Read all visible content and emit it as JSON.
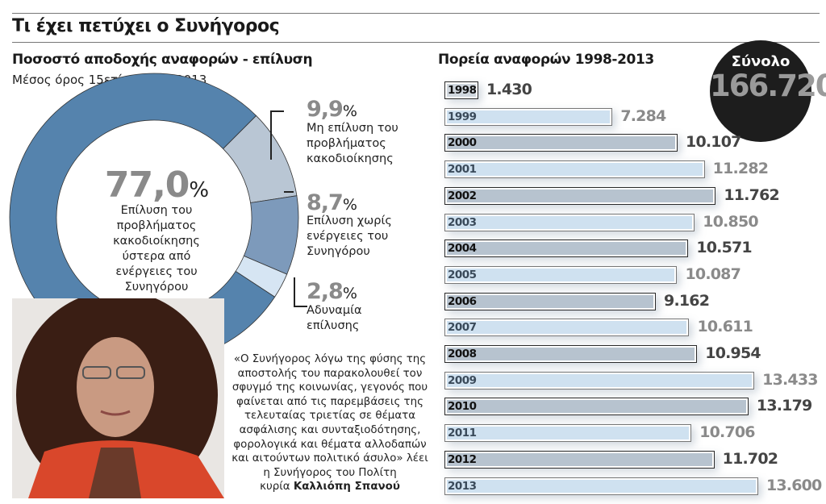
{
  "title": "Τι έχει πετύχει ο Συνήγορος",
  "donut_section": {
    "title": "Ποσοστό αποδοχής αναφορών - επίλυση",
    "subtitle": "Μέσος όρος 15ετίας 1998-2013"
  },
  "bars_section": {
    "title": "Πορεία αναφορών 1998-2013"
  },
  "total": {
    "label": "Σύνολο",
    "value": "166.720"
  },
  "quote": {
    "text": "«Ο Συνήγορος λόγω της φύσης της αποστολής του παρακολουθεί τον σφυγμό της κοινωνίας, γεγονός που φαίνεται από τις παρεμβάσεις της τελευταίας τριετίας σε θέματα ασφάλισης και συνταξιοδότησης, φορολογικά και θέματα αλλοδαπών και αιτούντων πολιτικό άσυλο» λέει η Συνήγορος του Πολίτη",
    "prefix": "κυρία",
    "name": "Καλλιόπη Σπανού"
  },
  "chart_data": [
    {
      "type": "pie",
      "donut": true,
      "slices": [
        {
          "value": 9.9,
          "value_label": "9,9",
          "label": "Μη επίλυση του προβλήματος κακοδιοίκησης",
          "color": "#b9c6d4"
        },
        {
          "value": 8.7,
          "value_label": "8,7",
          "label": "Επίλυση χωρίς ενέργειες του Συνηγόρου",
          "color": "#7d9abb"
        },
        {
          "value": 2.8,
          "value_label": "2,8",
          "label": "Αδυναμία επίλυσης",
          "color": "#d6e5f3"
        },
        {
          "value": 77.0,
          "value_label": "77,0",
          "label": "Επίλυση του προβλήματος κακοδιοίκησης ύστερα από ενέργειες του Συνηγόρου",
          "color": "#5583ad"
        }
      ],
      "unit": "%"
    },
    {
      "type": "bar",
      "orientation": "horizontal",
      "categories": [
        "1998",
        "1999",
        "2000",
        "2001",
        "2002",
        "2003",
        "2004",
        "2005",
        "2006",
        "2007",
        "2008",
        "2009",
        "2010",
        "2011",
        "2012",
        "2013"
      ],
      "values": [
        1430,
        7284,
        10107,
        11282,
        11762,
        10850,
        10571,
        10087,
        9162,
        10611,
        10954,
        13433,
        13179,
        10706,
        11702,
        13600
      ],
      "value_labels": [
        "1.430",
        "7.284",
        "10.107",
        "11.282",
        "11.762",
        "10.850",
        "10.571",
        "10.087",
        "9.162",
        "10.611",
        "10.954",
        "13.433",
        "13.179",
        "10.706",
        "11.702",
        "13.600"
      ],
      "colors": {
        "even": "#b7c3cf",
        "odd": "#cfe1f0"
      }
    }
  ]
}
